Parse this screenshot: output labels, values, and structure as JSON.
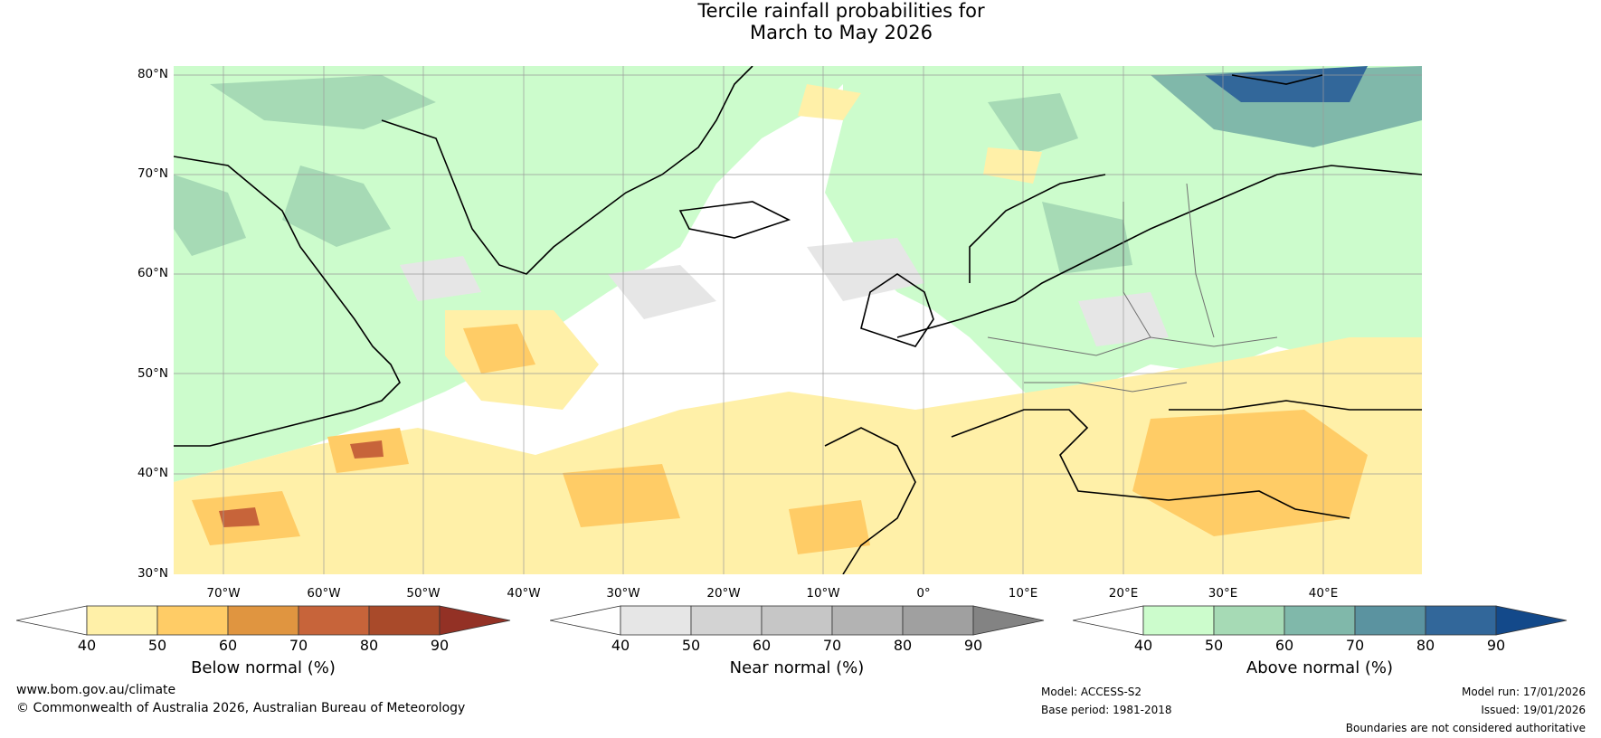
{
  "title": {
    "line1": "Tercile rainfall probabilities for",
    "line2": "March to May 2026"
  },
  "latitude_labels": [
    "80°N",
    "70°N",
    "60°N",
    "50°N",
    "40°N",
    "30°N"
  ],
  "longitude_labels": [
    "70°W",
    "60°W",
    "50°W",
    "40°W",
    "30°W",
    "20°W",
    "10°W",
    "0°",
    "10°E",
    "20°E",
    "30°E",
    "40°E"
  ],
  "colorbars": [
    {
      "label": "Below normal (%)",
      "ticks": [
        "40",
        "50",
        "60",
        "70",
        "80",
        "90"
      ],
      "colors": [
        "#ffffff",
        "#fff0a8",
        "#ffcc66",
        "#e09540",
        "#c7643a",
        "#a94a2a",
        "#933125"
      ]
    },
    {
      "label": "Near normal (%)",
      "ticks": [
        "40",
        "50",
        "60",
        "70",
        "80",
        "90"
      ],
      "colors": [
        "#ffffff",
        "#e6e6e6",
        "#d3d3d3",
        "#c6c6c6",
        "#b3b3b3",
        "#a0a0a0",
        "#838383"
      ]
    },
    {
      "label": "Above normal (%)",
      "ticks": [
        "40",
        "50",
        "60",
        "70",
        "80",
        "90"
      ],
      "colors": [
        "#ffffff",
        "#ccfccc",
        "#a6dab5",
        "#80b8aa",
        "#5b93a0",
        "#32679a",
        "#13498a"
      ]
    }
  ],
  "footer": {
    "website": "www.bom.gov.au/climate",
    "copyright": "© Commonwealth of Australia 2026, Australian Bureau of Meteorology",
    "model": "Model: ACCESS-S2",
    "base_period": "Base period: 1981-2018",
    "model_run": "Model run: 17/01/2026",
    "issued": "Issued: 19/01/2026",
    "disclaimer": "Boundaries are not considered authoritative"
  }
}
